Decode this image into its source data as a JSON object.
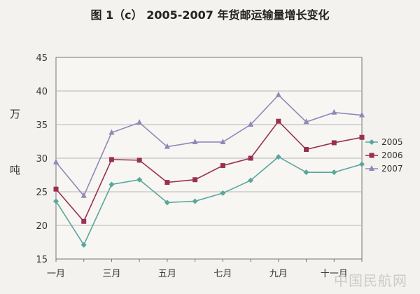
{
  "chart_data": {
    "type": "line",
    "title": "图 1（c）    2005-2007 年货邮运输量增长变化",
    "ylabel": [
      "万",
      "吨"
    ],
    "xlabel": "",
    "ylim": [
      15,
      45
    ],
    "yticks": [
      15,
      20,
      25,
      30,
      35,
      40,
      45
    ],
    "x_tick_labels": [
      "一月",
      "三月",
      "五月",
      "七月",
      "九月",
      "十一月"
    ],
    "x_count": 12,
    "grid": "horizontal",
    "legend_position": "right",
    "series": [
      {
        "name": "2005",
        "color": "#5aa69c",
        "marker": "diamond",
        "values": [
          23.6,
          17.1,
          26.1,
          26.8,
          23.4,
          23.6,
          24.8,
          26.7,
          30.2,
          27.9,
          27.9,
          29.1
        ]
      },
      {
        "name": "2006",
        "color": "#9a2f56",
        "marker": "square",
        "values": [
          25.4,
          20.6,
          29.8,
          29.7,
          26.4,
          26.8,
          28.9,
          30.0,
          35.5,
          31.3,
          32.3,
          33.1
        ]
      },
      {
        "name": "2007",
        "color": "#8e89b8",
        "marker": "triangle",
        "values": [
          29.4,
          24.4,
          33.8,
          35.3,
          31.7,
          32.4,
          32.4,
          35.0,
          39.4,
          35.4,
          36.8,
          36.4
        ]
      }
    ]
  },
  "watermark": "中国民航网"
}
